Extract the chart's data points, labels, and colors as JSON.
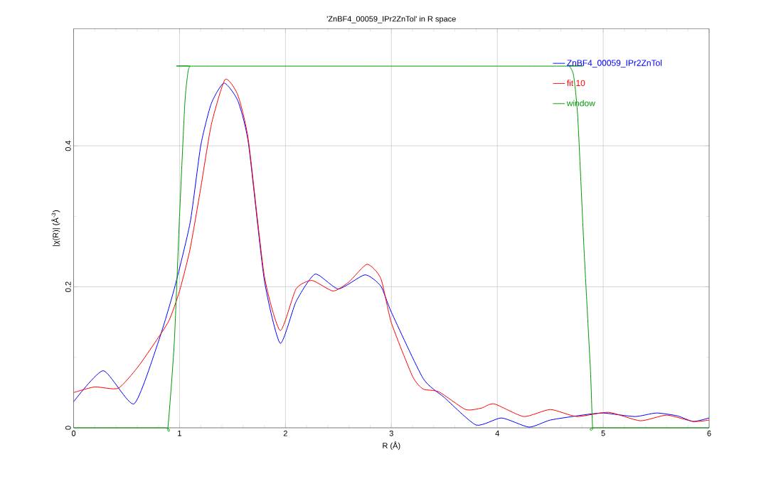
{
  "chart_data": {
    "type": "line",
    "title": "'ZnBF4_00059_IPr2ZnTol' in R space",
    "xlabel": "R (Å)",
    "ylabel": "|χ(R)| (Å$^{-3}$)",
    "xlim": [
      0,
      6
    ],
    "ylim": [
      0,
      0.566
    ],
    "xticks": [
      0,
      1,
      2,
      3,
      4,
      5,
      6
    ],
    "yticks": [
      0,
      0.2,
      0.4
    ],
    "grid": true,
    "legend": "top right",
    "marker": "none",
    "line_style": "solid",
    "series": [
      {
        "name": "ZnBF4_00059_IPr2ZnTol",
        "color": "#0000ff",
        "x": [
          0,
          0.28,
          0.57,
          0.8,
          0.95,
          1.1,
          1.2,
          1.3,
          1.42,
          1.55,
          1.65,
          1.8,
          1.95,
          2.1,
          2.28,
          2.5,
          2.75,
          2.9,
          3.0,
          3.3,
          3.5,
          3.8,
          4.04,
          4.3,
          4.5,
          4.8,
          5.0,
          5.3,
          5.5,
          5.7,
          5.85,
          6.0
        ],
        "values": [
          0.037,
          0.081,
          0.034,
          0.122,
          0.197,
          0.291,
          0.4,
          0.46,
          0.489,
          0.464,
          0.404,
          0.21,
          0.12,
          0.179,
          0.218,
          0.197,
          0.217,
          0.201,
          0.164,
          0.07,
          0.043,
          0.004,
          0.014,
          0.001,
          0.011,
          0.018,
          0.021,
          0.016,
          0.021,
          0.017,
          0.009,
          0.014
        ]
      },
      {
        "name": "fit 10",
        "color": "#ff0000",
        "x": [
          0,
          0.2,
          0.42,
          0.6,
          0.75,
          0.9,
          1.0,
          1.1,
          1.2,
          1.3,
          1.43,
          1.55,
          1.65,
          1.8,
          1.95,
          2.1,
          2.25,
          2.45,
          2.6,
          2.77,
          2.9,
          3.0,
          3.2,
          3.3,
          3.45,
          3.7,
          3.85,
          3.97,
          4.25,
          4.5,
          4.75,
          5.05,
          5.35,
          5.6,
          5.85,
          6.0
        ],
        "values": [
          0.05,
          0.058,
          0.056,
          0.085,
          0.117,
          0.152,
          0.194,
          0.254,
          0.34,
          0.43,
          0.494,
          0.472,
          0.408,
          0.216,
          0.138,
          0.197,
          0.209,
          0.194,
          0.207,
          0.232,
          0.212,
          0.149,
          0.073,
          0.055,
          0.051,
          0.026,
          0.028,
          0.034,
          0.016,
          0.026,
          0.016,
          0.022,
          0.01,
          0.018,
          0.009,
          0.011
        ]
      },
      {
        "name": "window",
        "color": "#009900",
        "x": [
          0,
          0.86,
          0.89,
          0.95,
          1.0,
          1.05,
          1.08,
          1.1,
          1.13,
          4.65,
          4.68,
          4.72,
          4.76,
          4.82,
          4.88,
          4.9,
          4.93,
          6.0
        ],
        "values": [
          0,
          0,
          0,
          0.12,
          0.3,
          0.46,
          0.505,
          0.513,
          0.513,
          0.513,
          0.513,
          0.5,
          0.44,
          0.25,
          0.08,
          0,
          0,
          0
        ]
      }
    ]
  }
}
